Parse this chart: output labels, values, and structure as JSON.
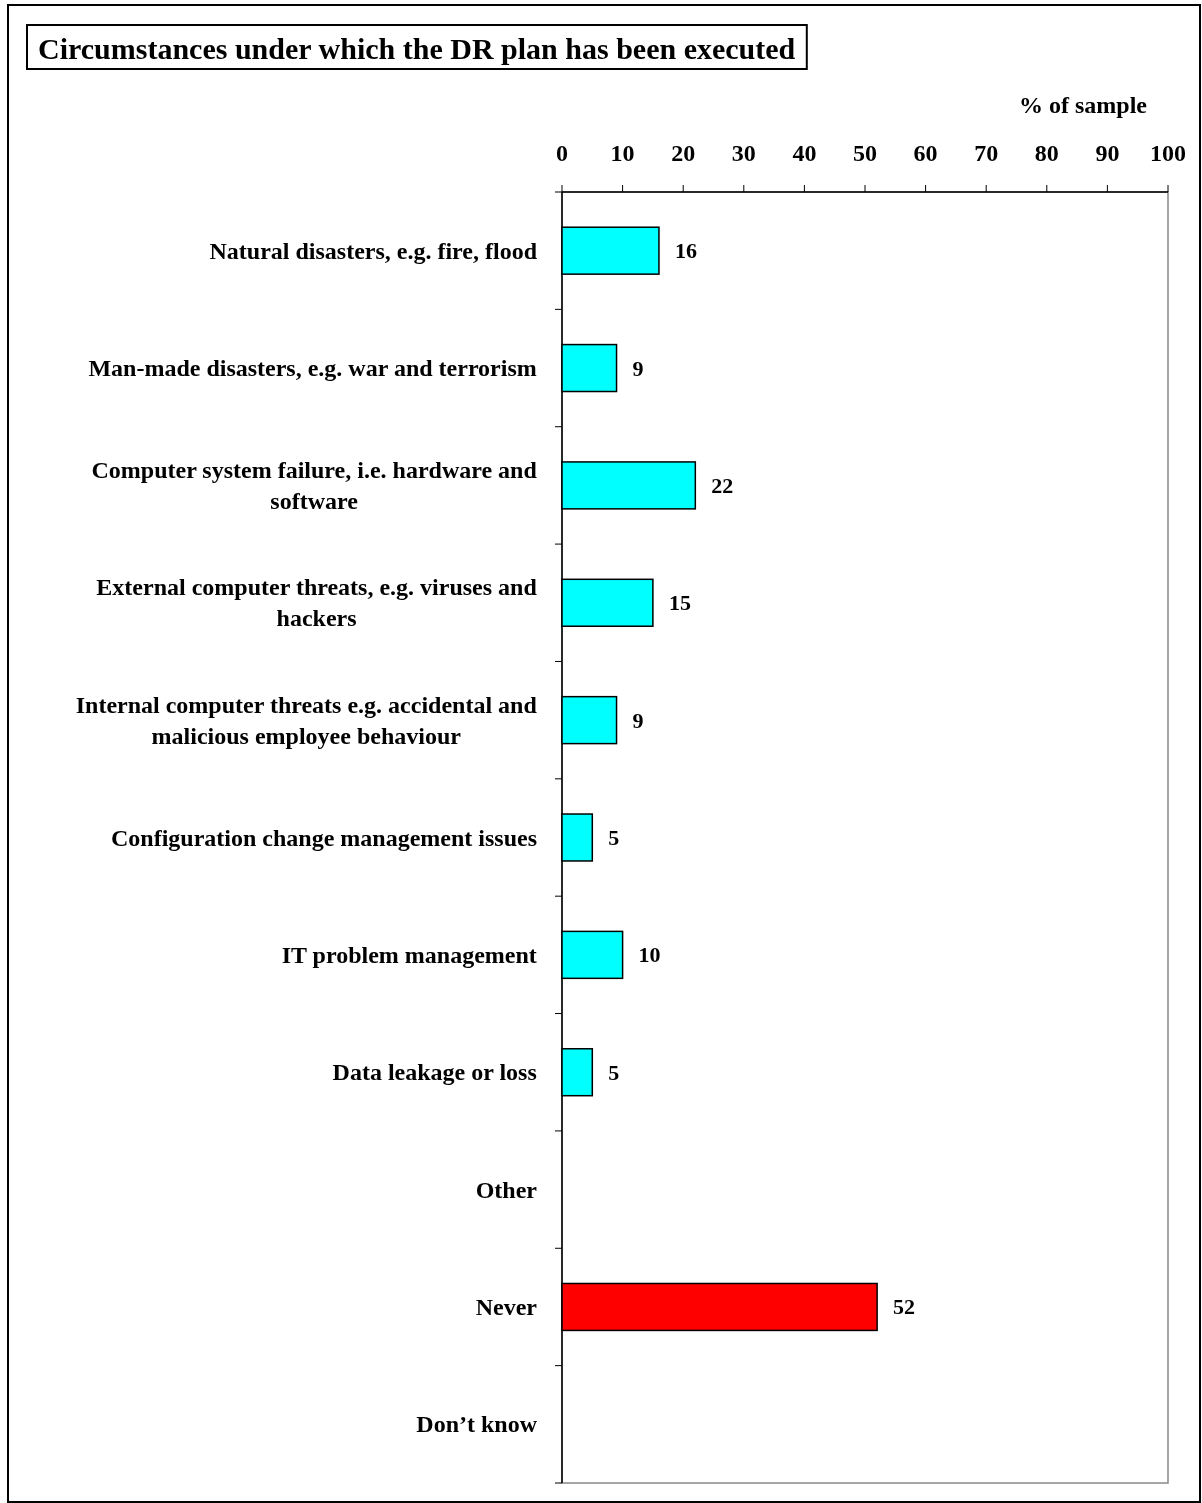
{
  "chart_data": {
    "type": "bar",
    "orientation": "horizontal",
    "title": "Circumstances under which the DR plan has been executed",
    "xlabel": "% of sample",
    "categories": [
      "Natural disasters, e.g. fire, flood",
      "Man-made disasters, e.g. war and terrorism",
      "Computer system failure, i.e. hardware and software",
      "External computer threats, e.g. viruses and hackers",
      "Internal computer threats e.g. accidental and malicious employee behaviour",
      "Configuration change management issues",
      "IT problem management",
      "Data leakage or loss",
      "Other",
      "Never",
      "Don’t know"
    ],
    "values": [
      16,
      9,
      22,
      15,
      9,
      5,
      10,
      5,
      null,
      52,
      null
    ],
    "colors": [
      "#00ffff",
      "#00ffff",
      "#00ffff",
      "#00ffff",
      "#00ffff",
      "#00ffff",
      "#00ffff",
      "#00ffff",
      null,
      "#ff0000",
      null
    ],
    "xlim": [
      0,
      100
    ],
    "xticks": [
      0,
      10,
      20,
      30,
      40,
      50,
      60,
      70,
      80,
      90,
      100
    ],
    "data_labels": true,
    "grid": false
  }
}
